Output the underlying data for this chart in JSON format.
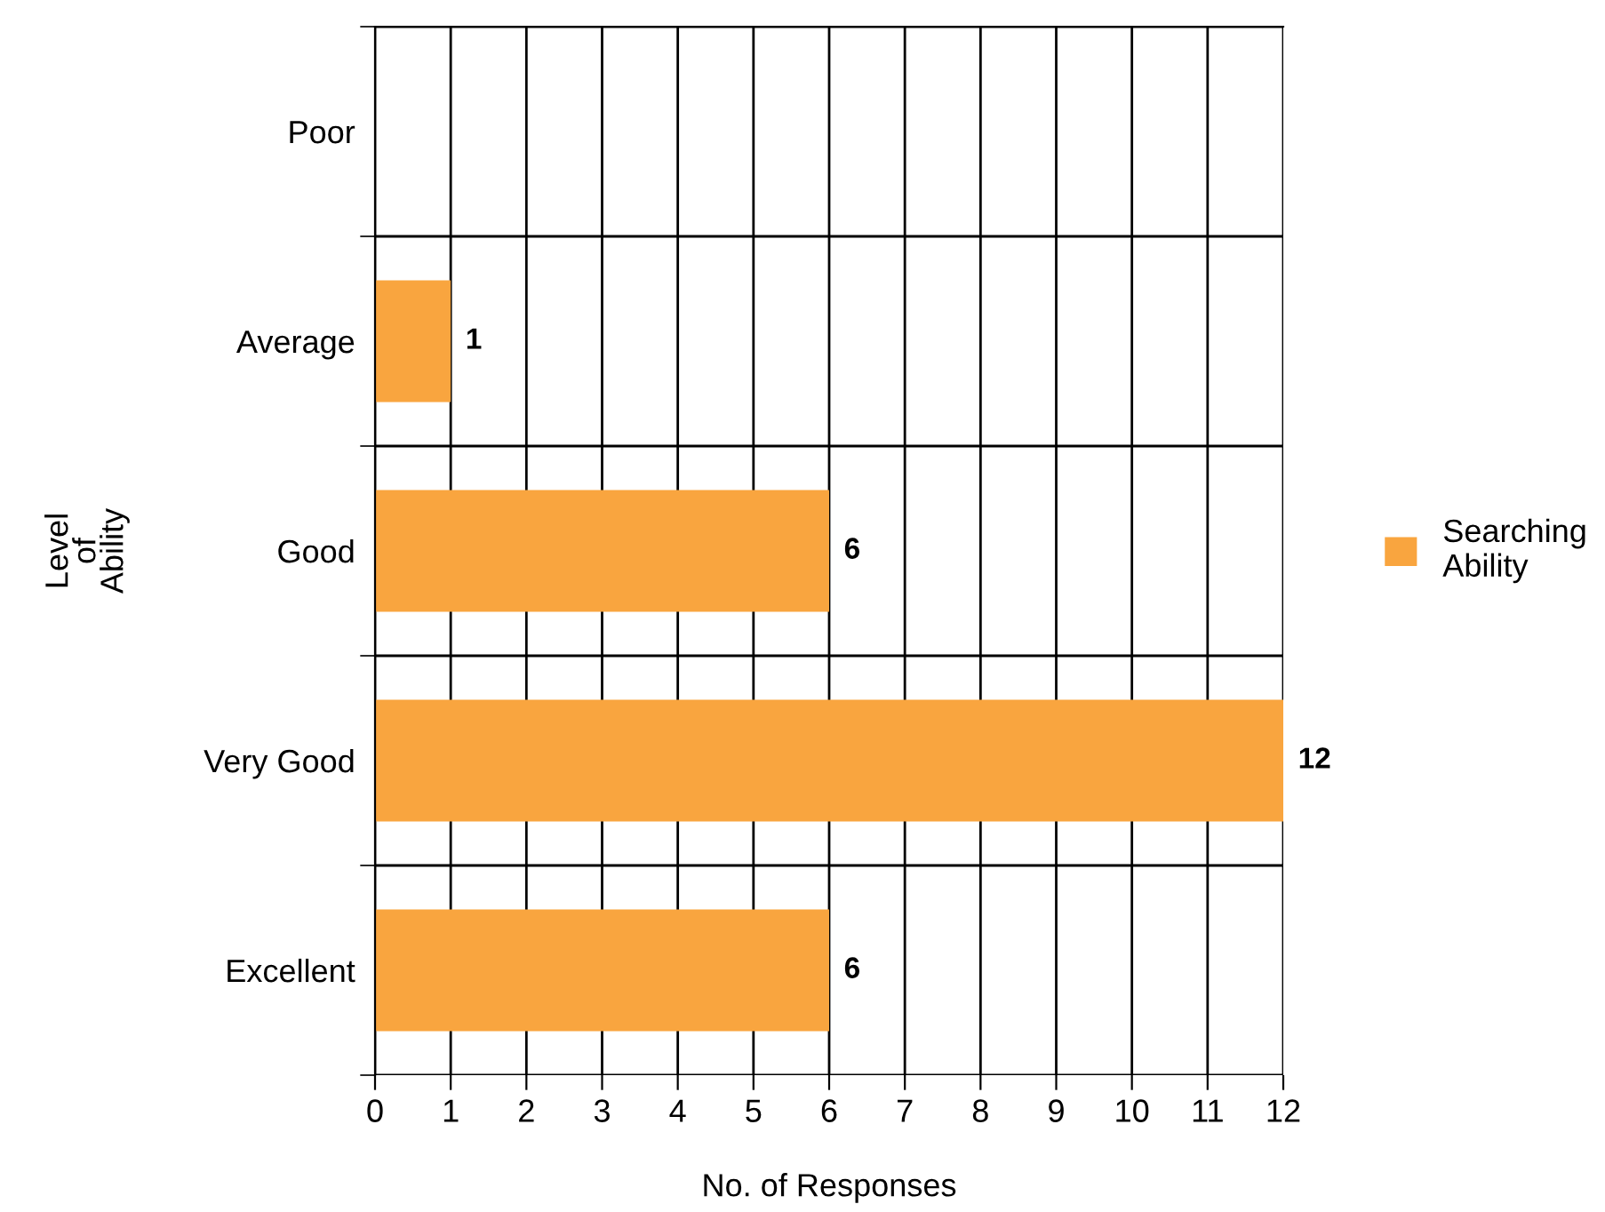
{
  "chart_data": {
    "type": "bar",
    "orientation": "horizontal",
    "categories": [
      "Poor",
      "Average",
      "Good",
      "Very Good",
      "Excellent"
    ],
    "series": [
      {
        "name": "Searching Ability",
        "color": "#f9a53f",
        "values": [
          0,
          1,
          6,
          12,
          6
        ],
        "value_labels": [
          null,
          "1",
          "6",
          "12",
          "6"
        ]
      }
    ],
    "xlabel": "No. of Responses",
    "ylabel": "Level\nof\nAbility",
    "xlim": [
      0,
      12
    ],
    "xticks": [
      0,
      1,
      2,
      3,
      4,
      5,
      6,
      7,
      8,
      9,
      10,
      11,
      12
    ],
    "grid": true,
    "legend": "right"
  }
}
